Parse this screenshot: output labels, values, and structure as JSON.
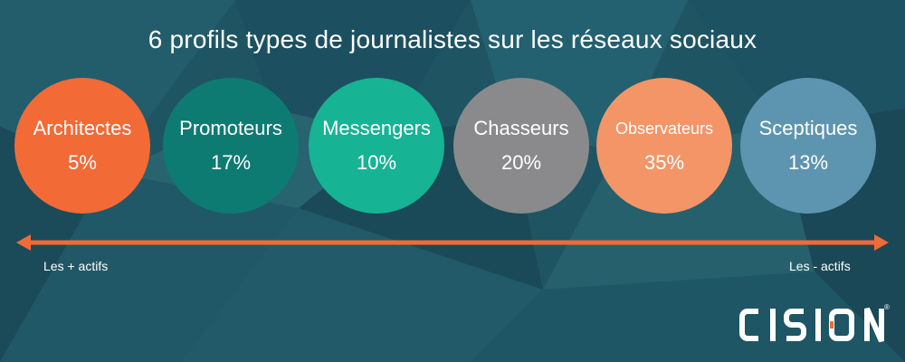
{
  "title": "6 profils types de journalistes sur les réseaux sociaux",
  "profiles": [
    {
      "name": "Architectes",
      "percent": "5%",
      "color": "#f26a36"
    },
    {
      "name": "Promoteurs",
      "percent": "17%",
      "color": "#0e7b72"
    },
    {
      "name": "Messengers",
      "percent": "10%",
      "color": "#16b394"
    },
    {
      "name": "Chasseurs",
      "percent": "20%",
      "color": "#8a8a8c"
    },
    {
      "name": "Observateurs",
      "percent": "35%",
      "color": "#f39566"
    },
    {
      "name": "Sceptiques",
      "percent": "13%",
      "color": "#5d95b0"
    }
  ],
  "axis": {
    "left_label": "Les + actifs",
    "right_label": "Les - actifs",
    "color": "#f26a36"
  },
  "logo": {
    "text": "CISION",
    "registered": "®"
  },
  "colors": {
    "background": "#1f5563"
  }
}
